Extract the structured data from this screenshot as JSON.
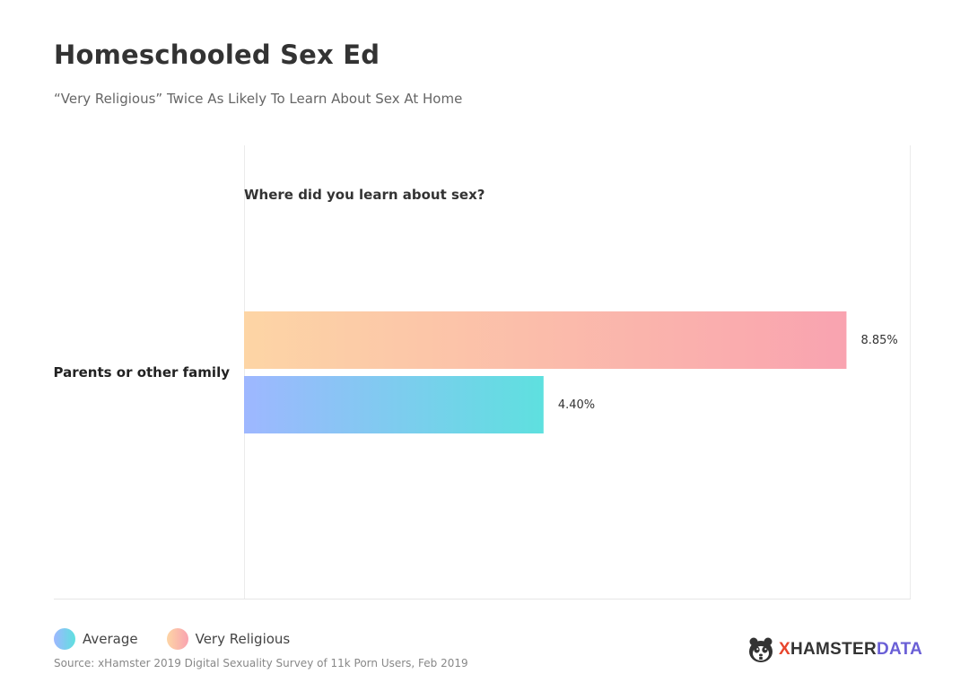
{
  "title": "Homeschooled Sex Ed",
  "subtitle": "“Very Religious” Twice As Likely To Learn About Sex At Home",
  "chart_data": {
    "type": "bar",
    "orientation": "horizontal",
    "title": "Where did you learn about sex?",
    "categories": [
      "Parents or other family"
    ],
    "series": [
      {
        "name": "Very Religious",
        "values": [
          8.85
        ],
        "labels": [
          "8.85%"
        ],
        "color_start": "#fdd5a5",
        "color_end": "#f9a3b0"
      },
      {
        "name": "Average",
        "values": [
          4.4
        ],
        "labels": [
          "4.40%"
        ],
        "color_start": "#9eb7ff",
        "color_end": "#5ee0df"
      }
    ],
    "xlim": [
      0,
      9.78
    ],
    "grid": false,
    "legend_position": "bottom-left"
  },
  "legend": {
    "average_label": "Average",
    "religious_label": "Very Religious"
  },
  "source": "Source: xHamster 2019 Digital Sexuality Survey of 11k Porn Users, Feb 2019",
  "logo": {
    "x": "X",
    "hamster": "HAMSTER",
    "data": "DATA"
  }
}
